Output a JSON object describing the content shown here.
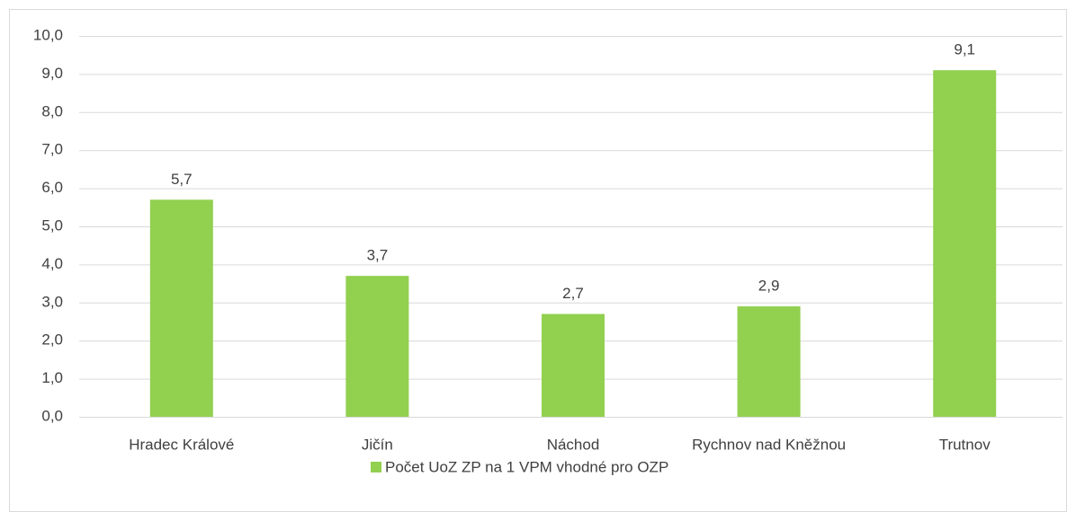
{
  "chart_data": {
    "type": "bar",
    "categories": [
      "Hradec Králové",
      "Jičín",
      "Náchod",
      "Rychnov nad Kněžnou",
      "Trutnov"
    ],
    "series": [
      {
        "name": "Počet UoZ ZP na 1 VPM vhodné pro OZP",
        "color": "#92d050",
        "values": [
          5.7,
          3.7,
          2.7,
          2.9,
          9.1
        ],
        "value_labels": [
          "5,7",
          "3,7",
          "2,7",
          "2,9",
          "9,1"
        ]
      }
    ],
    "ylim": [
      0,
      10
    ],
    "yticks": [
      {
        "value": 0,
        "label": "0,0"
      },
      {
        "value": 1,
        "label": "1,0"
      },
      {
        "value": 2,
        "label": "2,0"
      },
      {
        "value": 3,
        "label": "3,0"
      },
      {
        "value": 4,
        "label": "4,0"
      },
      {
        "value": 5,
        "label": "5,0"
      },
      {
        "value": 6,
        "label": "6,0"
      },
      {
        "value": 7,
        "label": "7,0"
      },
      {
        "value": 8,
        "label": "8,0"
      },
      {
        "value": 9,
        "label": "9,0"
      },
      {
        "value": 10,
        "label": "10,0"
      }
    ],
    "grid": true,
    "legend": "bottom"
  }
}
